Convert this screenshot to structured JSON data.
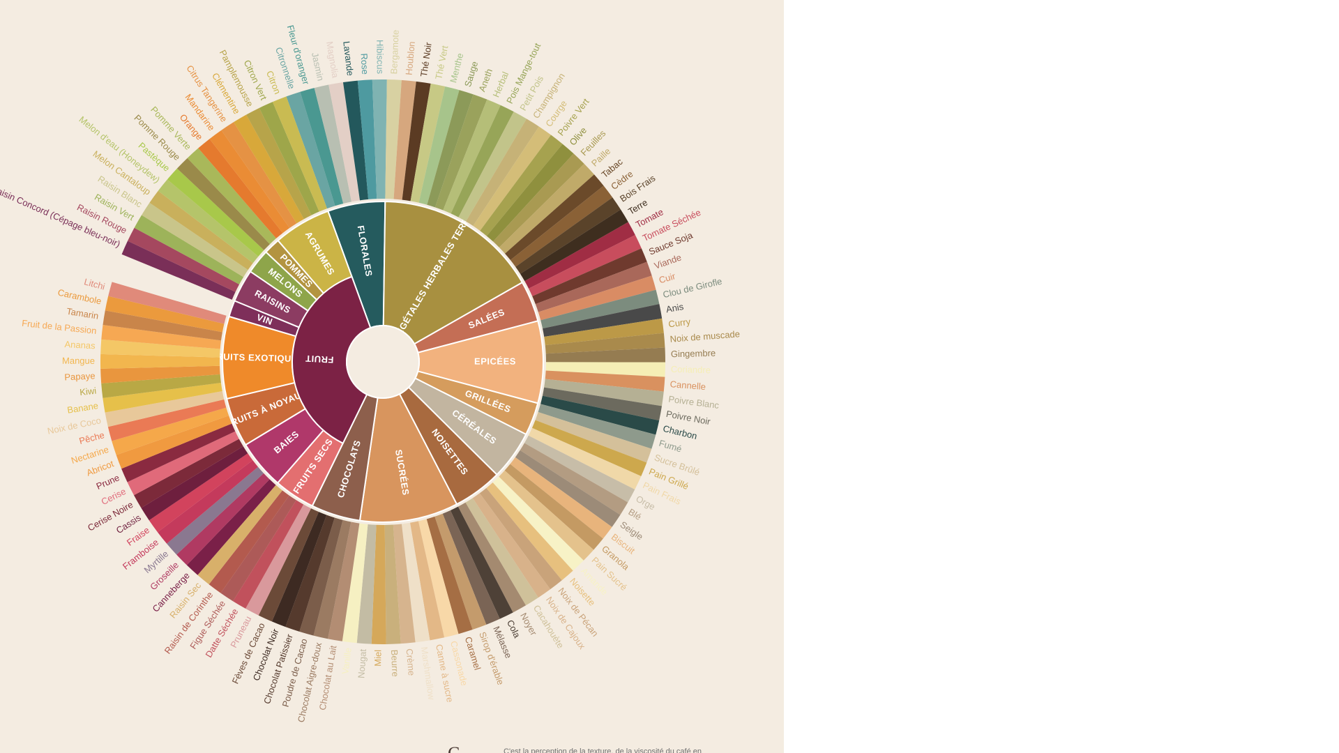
{
  "wheel": {
    "categories": [
      {
        "label": "FLORALES",
        "color": "#255b5e",
        "leaves": [
          {
            "label": "Citronnelle",
            "color": "#6aa5a3"
          },
          {
            "label": "Fleur d'oranger",
            "color": "#4a9891"
          },
          {
            "label": "Jasmin",
            "color": "#b8bfb2"
          },
          {
            "label": "Magnolia",
            "color": "#e3cfc6"
          },
          {
            "label": "Lavande",
            "color": "#23585c"
          },
          {
            "label": "Rose",
            "color": "#4e9aa0"
          },
          {
            "label": "Hibiscus",
            "color": "#7fb3b2"
          }
        ]
      },
      {
        "label": "VÉGÉTALES HERBALES TERREUSES",
        "color": "#a89040",
        "leaves": [
          {
            "label": "Bergamote",
            "color": "#d8d1a2"
          },
          {
            "label": "Houblon",
            "color": "#d6a77e"
          },
          {
            "label": "Thé Noir",
            "color": "#5b3b23"
          },
          {
            "label": "Thé Vert",
            "color": "#c7c985"
          },
          {
            "label": "Menthe",
            "color": "#a7c48b"
          },
          {
            "label": "Sauge",
            "color": "#8c9a59"
          },
          {
            "label": "Aneth",
            "color": "#9aa25c"
          },
          {
            "label": "Herbal",
            "color": "#b5be78"
          },
          {
            "label": "Pois Mange-tout",
            "color": "#97a558"
          },
          {
            "label": "Petit Pois",
            "color": "#c2c48a"
          },
          {
            "label": "Champignon",
            "color": "#c6b277"
          },
          {
            "label": "Courge",
            "color": "#d4bd78"
          },
          {
            "label": "Poivre Vert",
            "color": "#a6a24f"
          },
          {
            "label": "Olive",
            "color": "#8f903e"
          },
          {
            "label": "Feuilles",
            "color": "#a99a52"
          },
          {
            "label": "Paille",
            "color": "#c0aa69"
          },
          {
            "label": "Tabac",
            "color": "#6b4a2a"
          },
          {
            "label": "Cèdre",
            "color": "#8a6136"
          },
          {
            "label": "Bois Frais",
            "color": "#5a432a"
          },
          {
            "label": "Terre",
            "color": "#3e2e1f"
          }
        ]
      },
      {
        "label": "SALÉES",
        "color": "#c46e55",
        "leaves": [
          {
            "label": "Tomate",
            "color": "#a02d44"
          },
          {
            "label": "Tomate Séchée",
            "color": "#c84d5d"
          },
          {
            "label": "Sauce Soja",
            "color": "#6f3a2e"
          },
          {
            "label": "Viande",
            "color": "#a9685a"
          },
          {
            "label": "Cuir",
            "color": "#d98c64"
          }
        ]
      },
      {
        "label": "EPICÉES",
        "color": "#f2b27e",
        "leaves": [
          {
            "label": "Clou de Girofle",
            "color": "#7c8c7e"
          },
          {
            "label": "Anis",
            "color": "#494949"
          },
          {
            "label": "Curry",
            "color": "#bc9947"
          },
          {
            "label": "Noix de muscade",
            "color": "#a98a4c"
          },
          {
            "label": "Gingembre",
            "color": "#957c51"
          },
          {
            "label": "Coriandre",
            "color": "#f5eeb5"
          },
          {
            "label": "Cannelle",
            "color": "#d9915f"
          },
          {
            "label": "Poivre Blanc",
            "color": "#b5b094"
          },
          {
            "label": "Poivre Noir",
            "color": "#6c6a5e"
          },
          {
            "label": "Charbon",
            "color": "#2a4a48"
          }
        ]
      },
      {
        "label": "GRILLÉES",
        "color": "#d59c5d",
        "leaves": [
          {
            "label": "Fumé",
            "color": "#8e9a8c"
          },
          {
            "label": "Sucre Brûlé",
            "color": "#d4c09a"
          },
          {
            "label": "Pain Grillé",
            "color": "#cda84d"
          },
          {
            "label": "Pain Frais",
            "color": "#f0d8a8"
          }
        ]
      },
      {
        "label": "CÉRÉALES",
        "color": "#c2b5a0",
        "leaves": [
          {
            "label": "Orge",
            "color": "#c7bda8"
          },
          {
            "label": "Blé",
            "color": "#b39c82"
          },
          {
            "label": "Seigle",
            "color": "#9c8b78"
          },
          {
            "label": "Biscuit",
            "color": "#e8b47c"
          },
          {
            "label": "Granola",
            "color": "#c49a63"
          },
          {
            "label": "Pain Sucré",
            "color": "#e4c28c"
          }
        ]
      },
      {
        "label": "NOISETTES",
        "color": "#a86a3f",
        "leaves": [
          {
            "label": "Amande",
            "color": "#f7f2c6"
          },
          {
            "label": "Noisette",
            "color": "#e7c07e"
          },
          {
            "label": "Noix de Pécan",
            "color": "#c9a37a"
          },
          {
            "label": "Noix de Cajoux",
            "color": "#d8b28a"
          },
          {
            "label": "Cacahouète",
            "color": "#cfc19a"
          },
          {
            "label": "Noyer",
            "color": "#a48a70"
          }
        ]
      },
      {
        "label": "SUCRÉES",
        "color": "#d8955e",
        "leaves": [
          {
            "label": "Cola",
            "color": "#4e4137"
          },
          {
            "label": "Mélasse",
            "color": "#7a6455"
          },
          {
            "label": "Sirop d'érable",
            "color": "#c49b6c"
          },
          {
            "label": "Caramel",
            "color": "#a56e44"
          },
          {
            "label": "Cassonade",
            "color": "#f8d8a8"
          },
          {
            "label": "Canne à sucre",
            "color": "#e3b887"
          },
          {
            "label": "Marshmallow",
            "color": "#efe0c8"
          },
          {
            "label": "Crème",
            "color": "#d6b48e"
          },
          {
            "label": "Beurre",
            "color": "#c9b07c"
          },
          {
            "label": "Miel",
            "color": "#d5a85a"
          },
          {
            "label": "Nougat",
            "color": "#c3bca4"
          },
          {
            "label": "Vanille",
            "color": "#f6f0c2"
          }
        ]
      },
      {
        "label": "CHOCOLATS",
        "color": "#8d5f4c",
        "leaves": [
          {
            "label": "Chocolat au Lait",
            "color": "#b38d73"
          },
          {
            "label": "Chocolat Aigre-doux",
            "color": "#9b7b62"
          },
          {
            "label": "Poudre de Cacao",
            "color": "#7b5d4a"
          },
          {
            "label": "Chocolat Patissier",
            "color": "#553a2d"
          },
          {
            "label": "Chocolat Noir",
            "color": "#3d2a22"
          },
          {
            "label": "Fèves de Cacao",
            "color": "#6b4a38"
          }
        ]
      },
      {
        "label": "FRUITS SECS",
        "color": "#e36f70",
        "leaves": [
          {
            "label": "Pruneau",
            "color": "#d9999c"
          },
          {
            "label": "Datte Séchée",
            "color": "#c1515c"
          },
          {
            "label": "Figue Séchée",
            "color": "#ad5a58"
          },
          {
            "label": "Raisin de Corinthe",
            "color": "#b35a4e"
          },
          {
            "label": "Raisin Sec",
            "color": "#d8b06a"
          }
        ]
      },
      {
        "label": "BAIES",
        "color": "#b0386a",
        "leaves": [
          {
            "label": "Canneberge",
            "color": "#7a2048"
          },
          {
            "label": "Groseille",
            "color": "#b03a62"
          },
          {
            "label": "Myrtille",
            "color": "#8a7890"
          },
          {
            "label": "Framboise",
            "color": "#c43a5c"
          },
          {
            "label": "Fraise",
            "color": "#d2435d"
          },
          {
            "label": "Cassis",
            "color": "#6e1f3e"
          }
        ]
      },
      {
        "label": "FRUITS À NOYAUX",
        "color": "#c96a39",
        "leaves": [
          {
            "label": "Cerise Noire",
            "color": "#7c2a3a"
          },
          {
            "label": "Cerise",
            "color": "#e06a7a"
          },
          {
            "label": "Prune",
            "color": "#8a2a40"
          },
          {
            "label": "Abricot",
            "color": "#f09a40"
          },
          {
            "label": "Nectarine",
            "color": "#f5a84a"
          },
          {
            "label": "Pêche",
            "color": "#ea7a55"
          }
        ]
      },
      {
        "label": "FRUITS EXOTIQUES",
        "color": "#ef8a2a",
        "leaves": [
          {
            "label": "Noix de Coco",
            "color": "#e8c89a"
          },
          {
            "label": "Banane",
            "color": "#e6c04a"
          },
          {
            "label": "Kiwi",
            "color": "#b9a845"
          },
          {
            "label": "Papaye",
            "color": "#e9963e"
          },
          {
            "label": "Mangue",
            "color": "#f2b64e"
          },
          {
            "label": "Ananas",
            "color": "#f4c766"
          },
          {
            "label": "Fruit de la Passion",
            "color": "#f6a853"
          },
          {
            "label": "Tamarin",
            "color": "#c9854a"
          },
          {
            "label": "Carambole",
            "color": "#eb9a3d"
          },
          {
            "label": "Litchi",
            "color": "#e08a7a"
          }
        ]
      },
      {
        "label": "VIN",
        "color": "#7e2f5a",
        "leaves": []
      },
      {
        "label": "RAISINS",
        "color": "#8c3c62",
        "leaves": [
          {
            "label": "Raisin Concord (Cépage bleu-noir)",
            "color": "#7a2f58"
          },
          {
            "label": "Raisin Rouge",
            "color": "#a5485f"
          },
          {
            "label": "Raisin Vert",
            "color": "#9db35a"
          },
          {
            "label": "Raisin Blanc",
            "color": "#c9c58a"
          }
        ]
      },
      {
        "label": "MELONS",
        "color": "#8ea54a",
        "leaves": [
          {
            "label": "Melon Cantaloup",
            "color": "#c9b05c"
          },
          {
            "label": "Melon d'eau (Honeydew)",
            "color": "#b5c46a"
          },
          {
            "label": "Pastèque",
            "color": "#a8c84a"
          }
        ]
      },
      {
        "label": "POMMES",
        "color": "#b39440",
        "leaves": [
          {
            "label": "Pomme Rouge",
            "color": "#9a8a4a"
          },
          {
            "label": "Pomme Verte",
            "color": "#a9b85a"
          }
        ]
      },
      {
        "label": "AGRUMES",
        "color": "#cbb446",
        "leaves": [
          {
            "label": "Orange",
            "color": "#e57a2e"
          },
          {
            "label": "Mandarine",
            "color": "#ea8c35"
          },
          {
            "label": "Citrus Tangerine",
            "color": "#e59244"
          },
          {
            "label": "Clémentine",
            "color": "#d8a83a"
          },
          {
            "label": "Pamplemousse",
            "color": "#b7a44a"
          },
          {
            "label": "Citron Vert",
            "color": "#9ea64a"
          },
          {
            "label": "Citron",
            "color": "#c9bb52"
          }
        ]
      }
    ],
    "fruit_label": "FRUIT",
    "fruit_color": "#7c2245"
  },
  "caption": {
    "drop_cap": "C",
    "text": "C'est la perception de la texture, de la viscosité du café en"
  }
}
